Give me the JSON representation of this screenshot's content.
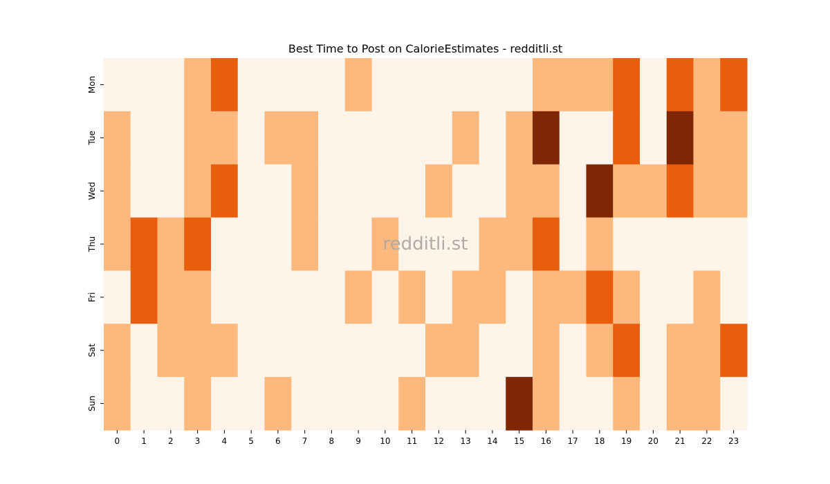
{
  "chart_data": {
    "type": "heatmap",
    "title": "Best Time to Post on CalorieEstimates - redditli.st",
    "watermark": "redditli.st",
    "xlabel": "",
    "ylabel": "",
    "x_categories": [
      "0",
      "1",
      "2",
      "3",
      "4",
      "5",
      "6",
      "7",
      "8",
      "9",
      "10",
      "11",
      "12",
      "13",
      "14",
      "15",
      "16",
      "17",
      "18",
      "19",
      "20",
      "21",
      "22",
      "23"
    ],
    "y_categories": [
      "Mon",
      "Tue",
      "Wed",
      "Thu",
      "Fri",
      "Sat",
      "Sun"
    ],
    "values": [
      [
        0,
        0,
        0,
        1,
        2,
        0,
        0,
        0,
        0,
        1,
        0,
        0,
        0,
        0,
        0,
        0,
        1,
        1,
        1,
        2,
        0,
        2,
        1,
        2
      ],
      [
        1,
        0,
        0,
        1,
        1,
        0,
        1,
        1,
        0,
        0,
        0,
        0,
        0,
        1,
        0,
        1,
        3,
        0,
        0,
        2,
        0,
        3,
        1,
        1
      ],
      [
        1,
        0,
        0,
        1,
        2,
        0,
        0,
        1,
        0,
        0,
        0,
        0,
        1,
        0,
        0,
        1,
        1,
        0,
        3,
        1,
        1,
        2,
        1,
        1
      ],
      [
        1,
        2,
        1,
        2,
        0,
        0,
        0,
        1,
        0,
        0,
        1,
        0,
        0,
        0,
        1,
        1,
        2,
        0,
        1,
        0,
        0,
        0,
        0,
        0
      ],
      [
        0,
        2,
        1,
        1,
        0,
        0,
        0,
        0,
        0,
        1,
        0,
        1,
        0,
        1,
        1,
        0,
        1,
        1,
        2,
        1,
        0,
        0,
        1,
        0
      ],
      [
        1,
        0,
        1,
        1,
        1,
        0,
        0,
        0,
        0,
        0,
        0,
        0,
        1,
        1,
        0,
        0,
        1,
        0,
        1,
        2,
        0,
        1,
        1,
        2
      ],
      [
        1,
        0,
        0,
        1,
        0,
        0,
        1,
        0,
        0,
        0,
        0,
        1,
        0,
        0,
        0,
        3,
        1,
        0,
        0,
        1,
        0,
        1,
        1,
        0
      ]
    ],
    "colorscale": {
      "0": "#fff4e9",
      "1": "#fdb97d",
      "2": "#e95e0d",
      "3": "#7f2704"
    },
    "colorbar": false,
    "grid": false,
    "legend": "none"
  }
}
